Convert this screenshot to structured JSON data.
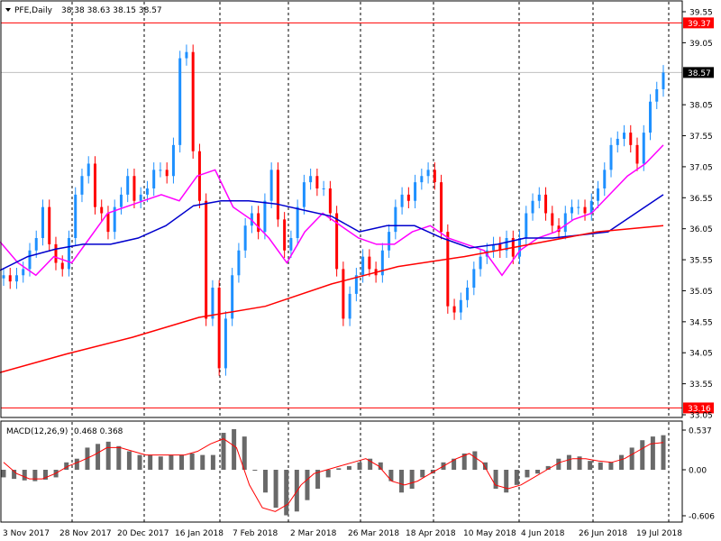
{
  "header": {
    "symbol_label": "PFE,Daily",
    "ohlc": "38.38 38.63 38.15 38.57"
  },
  "macd_header": {
    "label": "MACD(12,26,9)",
    "values": "0.468 0.368"
  },
  "colors": {
    "up": "#1e90ff",
    "down": "#ff0000",
    "ma_fast": "#ff00ff",
    "ma_mid": "#0000cd",
    "ma_slow": "#ff0000",
    "macd_hist": "#696969",
    "macd_signal": "#ff0000",
    "hline": "#ff0000",
    "price_tag": "#000000"
  },
  "chart_data": [
    {
      "type": "candlestick",
      "title": "PFE,Daily",
      "ylim": [
        33.05,
        39.55
      ],
      "y_ticks": [
        "39.55",
        "39.05",
        "38.05",
        "37.55",
        "37.05",
        "36.55",
        "36.05",
        "35.55",
        "35.05",
        "34.55",
        "34.05",
        "33.55",
        "33.05"
      ],
      "x_ticks": [
        "3 Nov 2017",
        "28 Nov 2017",
        "20 Dec 2017",
        "16 Jan 2018",
        "7 Feb 2018",
        "2 Mar 2018",
        "26 Mar 2018",
        "18 Apr 2018",
        "10 May 2018",
        "4 Jun 2018",
        "26 Jun 2018",
        "19 Jul 2018"
      ],
      "horizontal_lines": [
        {
          "value": 39.37,
          "label": "39.37"
        },
        {
          "value": 33.16,
          "label": "33.16"
        }
      ],
      "current_price": {
        "value": 38.57,
        "label": "38.57"
      },
      "closes": [
        35.3,
        35.2,
        35.3,
        35.4,
        35.7,
        35.9,
        36.4,
        35.8,
        35.5,
        35.4,
        35.9,
        36.6,
        36.9,
        37.1,
        36.4,
        36.3,
        36.0,
        36.4,
        36.6,
        36.9,
        36.5,
        36.6,
        36.7,
        37.0,
        37.0,
        36.9,
        37.4,
        38.8,
        38.9,
        37.3,
        36.5,
        34.6,
        35.1,
        33.8,
        34.6,
        35.3,
        35.7,
        36.1,
        36.3,
        36.0,
        36.5,
        37.0,
        36.2,
        35.7,
        35.9,
        36.4,
        36.8,
        36.9,
        36.7,
        36.7,
        36.3,
        35.4,
        34.6,
        35.0,
        35.3,
        35.6,
        35.4,
        35.3,
        35.7,
        36.0,
        36.4,
        36.6,
        36.5,
        36.8,
        36.9,
        37.0,
        36.8,
        36.0,
        34.8,
        34.7,
        34.9,
        35.1,
        35.4,
        35.6,
        35.7,
        35.8,
        35.7,
        35.9,
        35.6,
        35.9,
        36.3,
        36.5,
        36.6,
        36.3,
        36.1,
        36.0,
        36.3,
        36.4,
        36.4,
        36.3,
        36.5,
        36.7,
        37.0,
        37.4,
        37.5,
        37.6,
        37.4,
        37.1,
        37.6,
        38.1,
        38.3,
        38.57
      ],
      "moving_averages": [
        {
          "name": "MA fast",
          "values": [
            35.84,
            35.5,
            35.3,
            35.6,
            35.5,
            35.9,
            36.3,
            36.4,
            36.5,
            36.6,
            36.5,
            36.9,
            37.0,
            36.4,
            36.2,
            35.9,
            35.5,
            36.0,
            36.3,
            36.1,
            35.9,
            35.8,
            35.8,
            36.0,
            36.1,
            35.9,
            35.8,
            35.7,
            35.3,
            35.7,
            35.9,
            36.0,
            36.2,
            36.3,
            36.6,
            36.9,
            37.1,
            37.4
          ]
        },
        {
          "name": "MA mid",
          "values": [
            35.38,
            35.6,
            35.72,
            35.8,
            35.8,
            35.9,
            36.1,
            36.42,
            36.5,
            36.5,
            36.45,
            36.35,
            36.25,
            36.0,
            36.1,
            36.1,
            35.9,
            35.74,
            35.8,
            35.9,
            35.9,
            35.95,
            36.0,
            36.3,
            36.6
          ]
        },
        {
          "name": "MA slow",
          "values": [
            33.73,
            34.03,
            34.3,
            34.62,
            34.8,
            35.16,
            35.44,
            35.6,
            35.8,
            36.0,
            36.1
          ]
        }
      ]
    },
    {
      "type": "bar",
      "title": "MACD(12,26,9)",
      "ylim": [
        -0.606,
        0.537
      ],
      "y_ticks": [
        "0.537",
        "0.00",
        "-0.606"
      ],
      "histogram": [
        -0.1,
        -0.12,
        -0.14,
        -0.15,
        -0.13,
        -0.1,
        0.1,
        0.15,
        0.3,
        0.35,
        0.38,
        0.32,
        0.25,
        0.2,
        0.2,
        0.18,
        0.2,
        0.2,
        0.22,
        0.2,
        0.2,
        0.5,
        0.55,
        0.45,
        0.0,
        -0.3,
        -0.5,
        -0.6,
        -0.55,
        -0.4,
        -0.25,
        -0.1,
        0.02,
        0.05,
        0.1,
        0.15,
        0.1,
        -0.15,
        -0.3,
        -0.25,
        -0.1,
        -0.05,
        0.1,
        0.15,
        0.22,
        0.25,
        0.1,
        -0.25,
        -0.3,
        -0.2,
        -0.1,
        -0.05,
        0.05,
        0.15,
        0.2,
        0.18,
        0.12,
        0.1,
        0.1,
        0.2,
        0.3,
        0.4,
        0.45,
        0.468
      ],
      "signal": [
        0.1,
        -0.05,
        -0.12,
        -0.12,
        -0.05,
        0.05,
        0.12,
        0.2,
        0.3,
        0.3,
        0.25,
        0.2,
        0.2,
        0.2,
        0.2,
        0.25,
        0.35,
        0.42,
        0.3,
        -0.2,
        -0.5,
        -0.55,
        -0.45,
        -0.2,
        -0.05,
        0.0,
        0.05,
        0.1,
        0.15,
        0.05,
        -0.15,
        -0.2,
        -0.15,
        -0.05,
        0.05,
        0.15,
        0.22,
        0.1,
        -0.2,
        -0.25,
        -0.2,
        -0.1,
        0.0,
        0.1,
        0.15,
        0.15,
        0.12,
        0.1,
        0.15,
        0.25,
        0.35,
        0.368
      ]
    }
  ]
}
